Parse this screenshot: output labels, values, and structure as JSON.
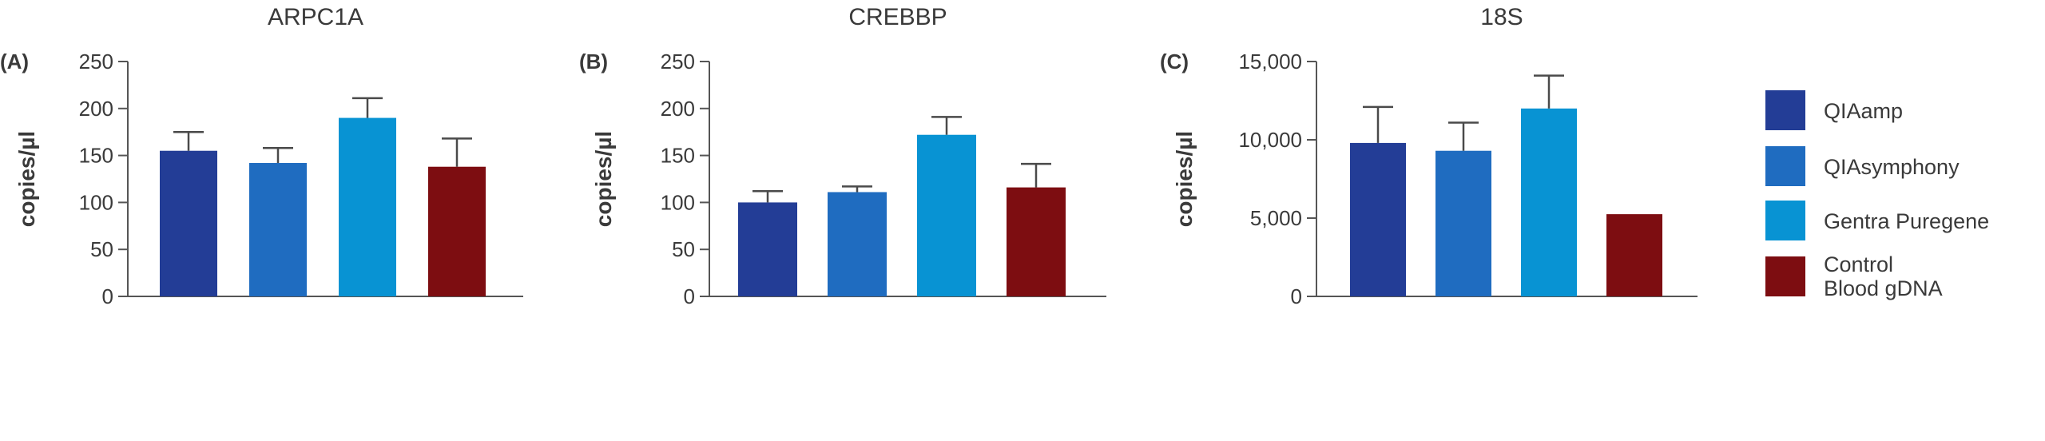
{
  "legend": [
    {
      "label": "QIAamp",
      "color": "#233d96"
    },
    {
      "label": "QIAsymphony",
      "color": "#1f6cc0"
    },
    {
      "label": "Gentra Puregene",
      "color": "#0893d3"
    },
    {
      "label": "Control",
      "label2": "Blood gDNA",
      "color": "#7d0d11"
    }
  ],
  "chart_data": [
    {
      "type": "bar",
      "panel": "(A)",
      "title": "ARPC1A",
      "ylabel": "copies/µl",
      "ylim": [
        0,
        250
      ],
      "ticks": [
        0,
        50,
        100,
        150,
        200,
        250
      ],
      "tick_labels": [
        "0",
        "50",
        "100",
        "150",
        "200",
        "250"
      ],
      "categories": [
        "QIAamp",
        "QIAsymphony",
        "Gentra Puregene",
        "Control Blood gDNA"
      ],
      "values": [
        155,
        142,
        190,
        138
      ],
      "errors": [
        20,
        16,
        21,
        30
      ]
    },
    {
      "type": "bar",
      "panel": "(B)",
      "title": "CREBBP",
      "ylabel": "copies/µl",
      "ylim": [
        0,
        250
      ],
      "ticks": [
        0,
        50,
        100,
        150,
        200,
        250
      ],
      "tick_labels": [
        "0",
        "50",
        "100",
        "150",
        "200",
        "250"
      ],
      "categories": [
        "QIAamp",
        "QIAsymphony",
        "Gentra Puregene",
        "Control Blood gDNA"
      ],
      "values": [
        100,
        111,
        172,
        116
      ],
      "errors": [
        12,
        6,
        19,
        25
      ]
    },
    {
      "type": "bar",
      "panel": "(C)",
      "title": "18S",
      "ylabel": "copies/µl",
      "ylim": [
        0,
        15000
      ],
      "ticks": [
        0,
        5000,
        10000,
        15000
      ],
      "tick_labels": [
        "0",
        "5,000",
        "10,000",
        "15,000"
      ],
      "categories": [
        "QIAamp",
        "QIAsymphony",
        "Gentra Puregene",
        "Control Blood gDNA"
      ],
      "values": [
        9800,
        9300,
        12000,
        5250
      ],
      "errors": [
        2300,
        1800,
        2100,
        0
      ]
    }
  ]
}
